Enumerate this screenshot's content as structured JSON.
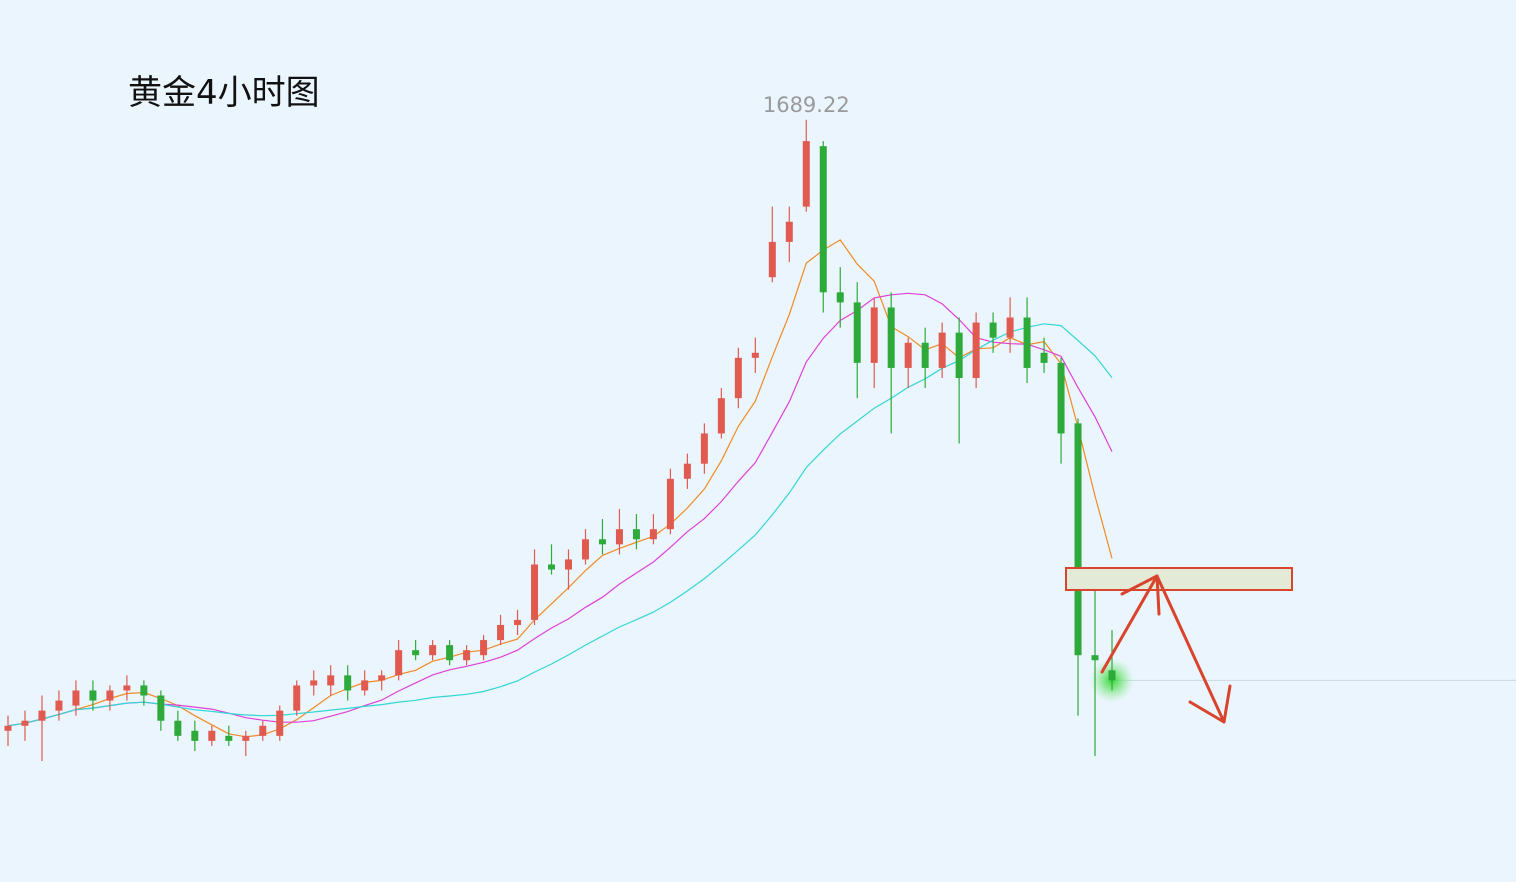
{
  "chart_data": {
    "type": "candlestick",
    "title": "黄金4小时图",
    "ylim": [
      1538,
      1713
    ],
    "up_color": "#e05a4f",
    "down_color": "#2eaa3a",
    "ma_colors": [
      "#f08a24",
      "#e040d8",
      "#33d6d6"
    ],
    "peak_label_index": 47,
    "candles": [
      [
        1568,
        1571,
        1565,
        1569
      ],
      [
        1569,
        1572,
        1566,
        1570
      ],
      [
        1570,
        1575,
        1562,
        1572
      ],
      [
        1572,
        1576,
        1570,
        1574
      ],
      [
        1573,
        1578,
        1571,
        1576
      ],
      [
        1576,
        1578,
        1572,
        1574
      ],
      [
        1574,
        1577,
        1572,
        1576
      ],
      [
        1576,
        1579,
        1574,
        1577
      ],
      [
        1577,
        1578,
        1573,
        1575
      ],
      [
        1575,
        1576,
        1568,
        1570
      ],
      [
        1570,
        1572,
        1566,
        1567
      ],
      [
        1568,
        1570,
        1564,
        1566
      ],
      [
        1566,
        1569,
        1565,
        1568
      ],
      [
        1567,
        1569,
        1565,
        1566
      ],
      [
        1566,
        1568,
        1563,
        1567
      ],
      [
        1567,
        1570,
        1566,
        1569
      ],
      [
        1567,
        1573,
        1566,
        1572
      ],
      [
        1572,
        1578,
        1571,
        1577
      ],
      [
        1577,
        1580,
        1575,
        1578
      ],
      [
        1577,
        1581,
        1575,
        1579
      ],
      [
        1579,
        1581,
        1574,
        1576
      ],
      [
        1576,
        1580,
        1575,
        1578
      ],
      [
        1578,
        1580,
        1576,
        1579
      ],
      [
        1579,
        1586,
        1578,
        1584
      ],
      [
        1584,
        1586,
        1582,
        1583
      ],
      [
        1583,
        1586,
        1582,
        1585
      ],
      [
        1585,
        1586,
        1581,
        1582
      ],
      [
        1582,
        1585,
        1581,
        1584
      ],
      [
        1583,
        1587,
        1582,
        1586
      ],
      [
        1586,
        1591,
        1585,
        1589
      ],
      [
        1589,
        1592,
        1587,
        1590
      ],
      [
        1590,
        1604,
        1589,
        1601
      ],
      [
        1601,
        1605,
        1599,
        1600
      ],
      [
        1600,
        1604,
        1596,
        1602
      ],
      [
        1602,
        1608,
        1601,
        1606
      ],
      [
        1606,
        1610,
        1603,
        1605
      ],
      [
        1605,
        1612,
        1603,
        1608
      ],
      [
        1608,
        1611,
        1604,
        1606
      ],
      [
        1606,
        1611,
        1605,
        1608
      ],
      [
        1608,
        1620,
        1607,
        1618
      ],
      [
        1618,
        1623,
        1616,
        1621
      ],
      [
        1621,
        1629,
        1619,
        1627
      ],
      [
        1627,
        1636,
        1626,
        1634
      ],
      [
        1634,
        1644,
        1632,
        1642
      ],
      [
        1642,
        1646,
        1639,
        1643
      ],
      [
        1658,
        1672,
        1657,
        1665
      ],
      [
        1665,
        1672,
        1661,
        1669
      ],
      [
        1672,
        1689.22,
        1671,
        1685
      ],
      [
        1684,
        1685,
        1651,
        1655
      ],
      [
        1655,
        1660,
        1648,
        1653
      ],
      [
        1653,
        1657,
        1634,
        1641
      ],
      [
        1641,
        1654,
        1636,
        1652
      ],
      [
        1652,
        1655,
        1627,
        1640
      ],
      [
        1640,
        1646,
        1636,
        1645
      ],
      [
        1645,
        1648,
        1636,
        1640
      ],
      [
        1640,
        1649,
        1638,
        1647
      ],
      [
        1647,
        1650,
        1625,
        1638
      ],
      [
        1638,
        1651,
        1636,
        1649
      ],
      [
        1649,
        1651,
        1643,
        1646
      ],
      [
        1646,
        1654,
        1643,
        1650
      ],
      [
        1650,
        1654,
        1637,
        1640
      ],
      [
        1643,
        1646,
        1639,
        1641
      ],
      [
        1641,
        1642,
        1621,
        1627
      ],
      [
        1629,
        1630,
        1571,
        1583
      ],
      [
        1583,
        1596,
        1563,
        1582
      ],
      [
        1580,
        1588,
        1576,
        1578
      ]
    ]
  }
}
